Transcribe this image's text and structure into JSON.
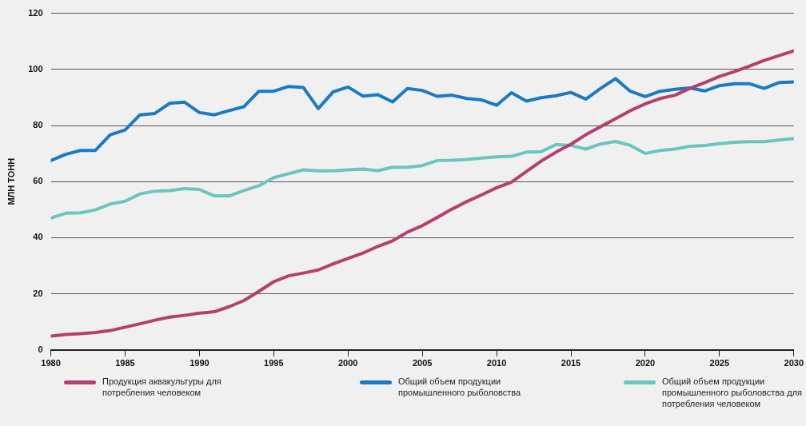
{
  "chart_data": {
    "type": "line",
    "ylabel": "МЛН ТОНН",
    "x": [
      1980,
      1981,
      1982,
      1983,
      1984,
      1985,
      1986,
      1987,
      1988,
      1989,
      1990,
      1991,
      1992,
      1993,
      1994,
      1995,
      1996,
      1997,
      1998,
      1999,
      2000,
      2001,
      2002,
      2003,
      2004,
      2005,
      2006,
      2007,
      2008,
      2009,
      2010,
      2011,
      2012,
      2013,
      2014,
      2015,
      2016,
      2017,
      2018,
      2019,
      2020,
      2021,
      2022,
      2023,
      2024,
      2025,
      2026,
      2027,
      2028,
      2029,
      2030
    ],
    "series": [
      {
        "name": "Продукция аквакультуры для потребления человеком",
        "color": "#b5406f",
        "values": [
          4.9,
          5.5,
          5.8,
          6.2,
          6.9,
          8.1,
          9.3,
          10.6,
          11.7,
          12.3,
          13.1,
          13.6,
          15.4,
          17.6,
          20.9,
          24.3,
          26.4,
          27.4,
          28.5,
          30.7,
          32.6,
          34.5,
          36.9,
          38.9,
          42.0,
          44.3,
          47.2,
          50.2,
          52.9,
          55.3,
          57.8,
          59.8,
          63.6,
          67.3,
          70.5,
          73.3,
          76.7,
          79.6,
          82.4,
          85.3,
          87.7,
          89.6,
          90.8,
          93.2,
          95.3,
          97.5,
          99.2,
          101.1,
          103.2,
          104.9,
          106.6
        ]
      },
      {
        "name": "Общий объем продукции промышленного рыболовства",
        "color": "#1a7bc4",
        "values": [
          67.5,
          69.7,
          71.1,
          71.1,
          76.7,
          78.4,
          83.8,
          84.3,
          87.9,
          88.3,
          84.6,
          83.8,
          85.3,
          86.7,
          92.2,
          92.2,
          93.9,
          93.5,
          86.0,
          92.0,
          93.7,
          90.5,
          91.0,
          88.4,
          93.2,
          92.5,
          90.4,
          90.8,
          89.6,
          89.1,
          87.2,
          91.7,
          88.7,
          89.9,
          90.6,
          91.8,
          89.4,
          93.2,
          96.7,
          92.2,
          90.3,
          92.2,
          92.9,
          93.4,
          92.3,
          94.2,
          94.9,
          94.9,
          93.2,
          95.3,
          95.5
        ]
      },
      {
        "name": "Общий объем продукции промышленного рыболовства для потребления человеком",
        "color": "#6cc5bf",
        "values": [
          47.0,
          48.7,
          48.9,
          49.9,
          52.0,
          53.0,
          55.6,
          56.6,
          56.8,
          57.5,
          57.2,
          54.9,
          54.9,
          56.8,
          58.5,
          61.4,
          62.8,
          64.2,
          63.8,
          63.8,
          64.2,
          64.5,
          63.9,
          65.1,
          65.1,
          65.7,
          67.5,
          67.6,
          67.9,
          68.4,
          68.8,
          69.0,
          70.5,
          70.7,
          73.2,
          72.9,
          71.6,
          73.4,
          74.3,
          72.9,
          70.0,
          71.1,
          71.6,
          72.6,
          72.9,
          73.5,
          74.0,
          74.2,
          74.2,
          74.8,
          75.4
        ]
      }
    ],
    "xlim": [
      1980,
      2030
    ],
    "xticks": [
      1980,
      1985,
      1990,
      1995,
      2000,
      2005,
      2010,
      2015,
      2020,
      2025,
      2030
    ],
    "ylim": [
      0,
      120
    ],
    "yticks": [
      0,
      20,
      40,
      60,
      80,
      100,
      120
    ],
    "grid": "y",
    "legend": "bottom",
    "marker": "none",
    "line_style": "solid"
  }
}
